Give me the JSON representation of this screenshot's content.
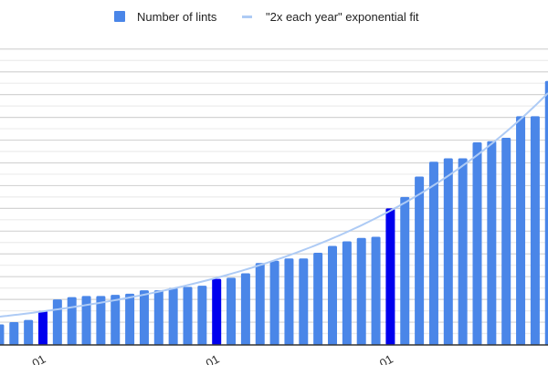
{
  "chart_data": {
    "type": "bar",
    "legend": {
      "position": "top",
      "entries": [
        {
          "name": "Number of lints",
          "marker": "square"
        },
        {
          "name": "\"2x each year\" exponential fit",
          "marker": "line"
        }
      ]
    },
    "series": [
      {
        "name": "Number of lints",
        "values": [
          1.8,
          2.0,
          2.2,
          3.0,
          4.0,
          4.2,
          4.3,
          4.3,
          4.4,
          4.5,
          4.8,
          4.8,
          5.0,
          5.1,
          5.2,
          5.8,
          5.9,
          6.3,
          7.2,
          7.4,
          7.6,
          7.6,
          8.1,
          8.7,
          9.1,
          9.4,
          9.5,
          12.0,
          13.0,
          14.8,
          16.1,
          16.4,
          16.4,
          17.8,
          17.9,
          18.2,
          20.1,
          20.1,
          23.2
        ],
        "highlighted_indices": [
          3,
          15,
          27
        ]
      }
    ],
    "fit": {
      "name": "\"2x each year\" exponential fit",
      "type": "exponential",
      "growth_factor_per_year": 2,
      "bars_per_year": 12,
      "value_at_index_3": 2.95
    },
    "x_tick_labels": [
      {
        "index": 3,
        "label": "-01"
      },
      {
        "index": 15,
        "label": "-01"
      },
      {
        "index": 27,
        "label": "-01"
      }
    ],
    "ylim": [
      0,
      26
    ],
    "grid": true,
    "y_axis_labels_visible": false,
    "colors": {
      "bar": "#4a86e8",
      "highlight_bar": "#0000ee",
      "fit_line": "#aecbf5",
      "grid_major": "#d4d4d4",
      "grid_minor": "#ececec",
      "axis": "#333333"
    }
  }
}
